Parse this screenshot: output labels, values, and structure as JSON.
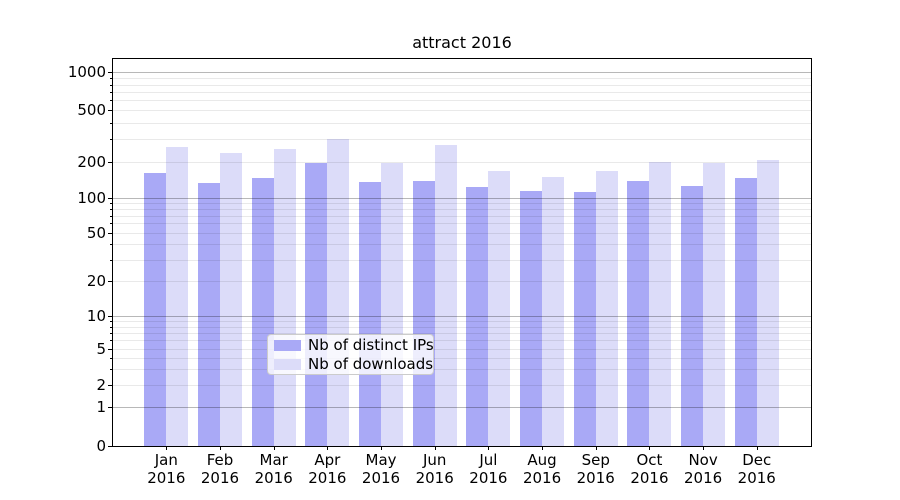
{
  "chart_data": {
    "type": "bar",
    "title": "attract 2016",
    "categories": [
      "Jan",
      "Feb",
      "Mar",
      "Apr",
      "May",
      "Jun",
      "Jul",
      "Aug",
      "Sep",
      "Oct",
      "Nov",
      "Dec"
    ],
    "x_year": "2016",
    "series": [
      {
        "name": "Nb of distinct IPs",
        "color": "#a9a9f6",
        "values": [
          160,
          133,
          147,
          196,
          136,
          138,
          122,
          113,
          112,
          138,
          125,
          145
        ]
      },
      {
        "name": "Nb of downloads",
        "color": "#dcdcf9",
        "values": [
          260,
          235,
          250,
          298,
          196,
          269,
          168,
          148,
          167,
          199,
          195,
          205
        ]
      }
    ],
    "xlabel": "",
    "ylabel": "",
    "yscale": "log-with-zero",
    "y_tick_labels": [
      "1000",
      "500",
      "200",
      "100",
      "50",
      "20",
      "10",
      "5",
      "2",
      "1",
      "0"
    ],
    "ylim": [
      0,
      1400
    ],
    "grid": true,
    "legend_position": "lower center"
  }
}
